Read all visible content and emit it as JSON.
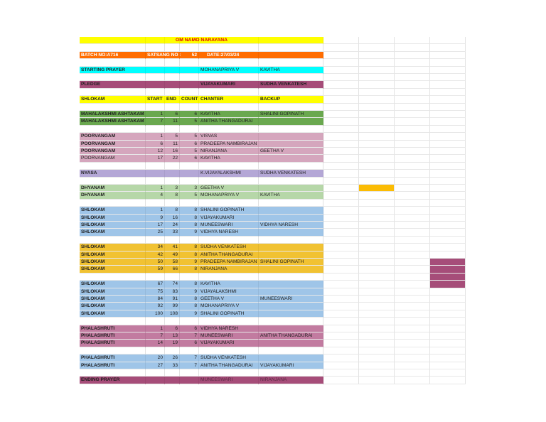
{
  "title": "OM NAMO NARAYANA",
  "batch": {
    "batch_label": "BATCH NO:A716",
    "satsang_label": "SATSANG NO :",
    "satsang_no": "52",
    "date": "DATE:27/03/24"
  },
  "colors": {
    "title": "#ffff00",
    "batch": "#ff6d01",
    "starting": "#00ffff",
    "pledge": "#a64d79",
    "header": "#ffff00",
    "mahalakshmi": "#6aa84f",
    "poorvangam": "#d5a6bd",
    "nyasa": "#b4a7d6",
    "dhyanam": "#b6d7a8",
    "blue": "#9fc5e8",
    "gold": "#f1c232",
    "phala": "#c27ba0",
    "ending": "#a64d79",
    "highlight_yellow": "#fbbc04",
    "highlight_purple": "#a64d79"
  },
  "header": [
    "SHLOKAM",
    "START",
    "END",
    "COUNT",
    "CHANTER",
    "BACKUP"
  ],
  "rows": [
    {
      "r": 4,
      "color": "starting",
      "cells": [
        "STARTING PRAYER",
        "",
        "",
        "",
        "MOHANAPRIYA V",
        "KAVITHA"
      ]
    },
    {
      "r": 6,
      "color": "pledge",
      "bold": true,
      "cells": [
        "PLEDGE",
        "",
        "",
        "",
        "VIJAYAKUMARI",
        "SUDHA VENKATESH"
      ]
    },
    {
      "r": 10,
      "color": "mahalakshmi",
      "cells": [
        "MAHALAKSHMI ASHTAKAM",
        "1",
        "6",
        "6",
        "KAVITHA",
        "SHALINI GOPINATH"
      ]
    },
    {
      "r": 11,
      "color": "mahalakshmi",
      "cells": [
        "MAHALAKSHMI ASHTAKAM",
        "7",
        "11",
        "5",
        "ANITHA THANGADURAI",
        ""
      ]
    },
    {
      "r": 13,
      "color": "poorvangam",
      "cells": [
        "POORVANGAM",
        "1",
        "5",
        "5",
        "VISVAS",
        ""
      ]
    },
    {
      "r": 14,
      "color": "poorvangam",
      "cells": [
        "POORVANGAM",
        "6",
        "11",
        "6",
        "PRADEEPA NAMBIRAJAN",
        ""
      ]
    },
    {
      "r": 15,
      "color": "poorvangam",
      "cells": [
        "POORVANGAM",
        "12",
        "16",
        "5",
        "NIRANJANA",
        "GEETHA V"
      ]
    },
    {
      "r": 16,
      "color": "poorvangam",
      "plain": true,
      "cells": [
        "POORVANGAM",
        "17",
        "22",
        "6",
        "KAVITHA",
        ""
      ]
    },
    {
      "r": 18,
      "color": "nyasa",
      "cells": [
        "NYASA",
        "",
        "",
        "",
        "K.VIJAYALAKSHMI",
        "SUDHA VENKATESH"
      ]
    },
    {
      "r": 20,
      "color": "dhyanam",
      "cells": [
        "DHYANAM",
        "1",
        "3",
        "3",
        "GEETHA V",
        ""
      ]
    },
    {
      "r": 21,
      "color": "dhyanam",
      "cells": [
        "DHYANAM",
        "4",
        "8",
        "5",
        "MOHANAPRIYA V",
        "KAVITHA"
      ]
    },
    {
      "r": 23,
      "color": "blue",
      "cells": [
        "SHLOKAM",
        "1",
        "8",
        "8",
        "SHALINI GOPINATH",
        ""
      ]
    },
    {
      "r": 24,
      "color": "blue",
      "cells": [
        "SHLOKAM",
        "9",
        "16",
        "8",
        "VIJAYAKUMARI",
        ""
      ]
    },
    {
      "r": 25,
      "color": "blue",
      "cells": [
        "SHLOKAM",
        "17",
        "24",
        "8",
        "MUNEESWARI",
        "VIDHYA NARESH"
      ]
    },
    {
      "r": 26,
      "color": "blue",
      "cells": [
        "SHLOKAM",
        "25",
        "33",
        "9",
        "VIDHYA NARESH",
        ""
      ]
    },
    {
      "r": 28,
      "color": "gold",
      "cells": [
        "SHLOKAM",
        "34",
        "41",
        "8",
        "SUDHA VENKATESH",
        ""
      ]
    },
    {
      "r": 29,
      "color": "gold",
      "cells": [
        "SHLOKAM",
        "42",
        "49",
        "8",
        "ANITHA THANGADURAI",
        ""
      ]
    },
    {
      "r": 30,
      "color": "gold",
      "cells": [
        "SHLOKAM",
        "50",
        "58",
        "9",
        "PRADEEPA NAMBIRAJAN",
        "SHALINI GOPINATH"
      ]
    },
    {
      "r": 31,
      "color": "gold",
      "cells": [
        "SHLOKAM",
        "59",
        "66",
        "8",
        "NIRANJANA",
        ""
      ]
    },
    {
      "r": 33,
      "color": "blue",
      "cells": [
        "SHLOKAM",
        "67",
        "74",
        "8",
        "KAVITHA",
        ""
      ]
    },
    {
      "r": 34,
      "color": "blue",
      "cells": [
        "SHLOKAM",
        "75",
        "83",
        "9",
        "VIJAYALAKSHMI",
        ""
      ]
    },
    {
      "r": 35,
      "color": "blue",
      "cells": [
        "SHLOKAM",
        "84",
        "91",
        "8",
        "GEETHA V",
        "MUNEESWARI"
      ]
    },
    {
      "r": 36,
      "color": "blue",
      "cells": [
        "SHLOKAM",
        "92",
        "99",
        "8",
        "MOHANAPRIYA V",
        ""
      ]
    },
    {
      "r": 37,
      "color": "blue",
      "cells": [
        "SHLOKAM",
        "100",
        "108",
        "9",
        "SHALINI GOPINATH",
        ""
      ]
    },
    {
      "r": 39,
      "color": "phala",
      "cells": [
        "PHALASHRUTI",
        "1",
        "6",
        "6",
        "VIDHYA NARESH",
        ""
      ]
    },
    {
      "r": 40,
      "color": "phala",
      "cells": [
        "PHALASHRUTI",
        "7",
        "13",
        "7",
        "MUNEESWARI",
        "ANITHA THANGADURAI"
      ]
    },
    {
      "r": 41,
      "color": "phala",
      "cells": [
        "PHALASHRUTI",
        "14",
        "19",
        "6",
        "VIJAYAKUMARI",
        ""
      ]
    },
    {
      "r": 43,
      "color": "blue",
      "cells": [
        "PHALASHRUTI",
        "20",
        "26",
        "7",
        "SUDHA VENKATESH",
        ""
      ]
    },
    {
      "r": 44,
      "color": "blue",
      "cells": [
        "PHALASHRUTI",
        "27",
        "33",
        "7",
        "ANITHA THANGADURAI",
        "VIJAYAKUMARI"
      ]
    },
    {
      "r": 46,
      "color": "ending",
      "muted": true,
      "cells": [
        "ENDING PRAYER",
        "",
        "",
        "",
        "MUNEESWARI",
        "NIRANJANA"
      ]
    }
  ]
}
